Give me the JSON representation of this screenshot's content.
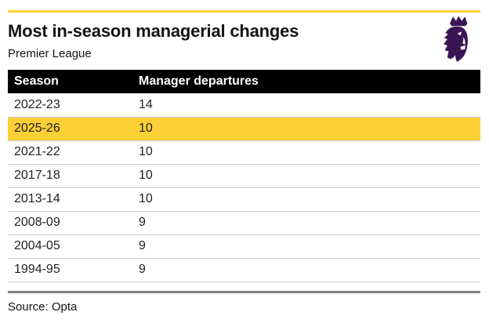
{
  "header": {
    "title": "Most in-season managerial changes",
    "subtitle": "Premier League",
    "logo_name": "premier-league-lion-logo"
  },
  "table": {
    "columns": [
      "Season",
      "Manager departures"
    ],
    "rows": [
      {
        "season": "2022-23",
        "departures": "14",
        "highlight": false
      },
      {
        "season": "2025-26",
        "departures": "10",
        "highlight": true
      },
      {
        "season": "2021-22",
        "departures": "10",
        "highlight": false
      },
      {
        "season": "2017-18",
        "departures": "10",
        "highlight": false
      },
      {
        "season": "2013-14",
        "departures": "10",
        "highlight": false
      },
      {
        "season": "2008-09",
        "departures": "9",
        "highlight": false
      },
      {
        "season": "2004-05",
        "departures": "9",
        "highlight": false
      },
      {
        "season": "1994-95",
        "departures": "9",
        "highlight": false
      }
    ]
  },
  "footer": {
    "source": "Source: Opta"
  },
  "colors": {
    "highlight_yellow": "#FBCF35",
    "accent_rule_yellow": "#FBCF35",
    "header_bar_black": "#000000",
    "logo_purple": "#3A1553",
    "separator_gray": "#CCCCCC",
    "bottom_rule_gray": "#808080"
  },
  "chart_data": {
    "type": "table",
    "title": "Most in-season managerial changes",
    "subtitle": "Premier League",
    "columns": [
      "Season",
      "Manager departures"
    ],
    "rows": [
      [
        "2022-23",
        14
      ],
      [
        "2025-26",
        10
      ],
      [
        "2021-22",
        10
      ],
      [
        "2017-18",
        10
      ],
      [
        "2013-14",
        10
      ],
      [
        "2008-09",
        9
      ],
      [
        "2004-05",
        9
      ],
      [
        "1994-95",
        9
      ]
    ],
    "highlighted_row": "2025-26",
    "source": "Source: Opta",
    "layout": "header row black with white text; highlighted row yellow; yellow accent rule top; gray rule above source line"
  }
}
